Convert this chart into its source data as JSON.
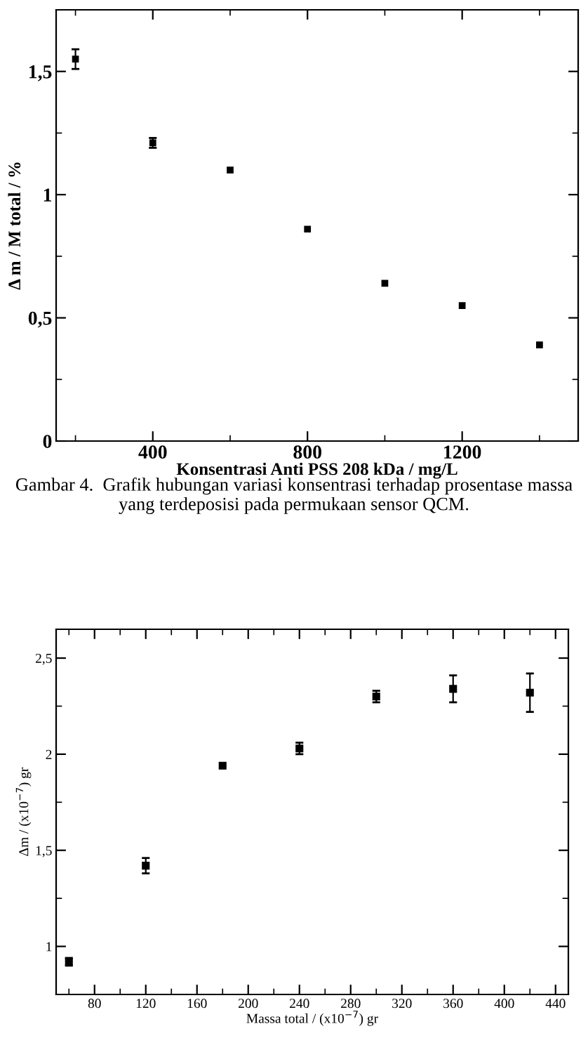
{
  "chart_data": [
    {
      "type": "scatter",
      "xlabel": "Konsentrasi Anti PSS 208 kDa / mg/L",
      "ylabel": "Δ m / M total / %",
      "x": [
        200,
        400,
        600,
        800,
        1000,
        1200,
        1400
      ],
      "values": [
        1.55,
        1.21,
        1.1,
        0.86,
        0.64,
        0.55,
        0.39
      ],
      "errors": [
        0.04,
        0.02,
        null,
        null,
        null,
        null,
        null
      ],
      "color": "#000000",
      "marker": "square",
      "xlim": [
        150,
        1500
      ],
      "xticks": [
        400,
        800,
        1200
      ],
      "ylim": [
        0,
        1.75
      ],
      "yticks": [
        0,
        {
          "value": 0.5,
          "label": "0,5"
        },
        1,
        {
          "value": 1.5,
          "label": "1,5"
        }
      ],
      "annotations": [
        "Gambar 4.  Grafik hubungan variasi konsentrasi terhadap prosentase massa yang terdeposisi pada permukaan sensor QCM."
      ]
    },
    {
      "type": "scatter",
      "xlabel": "Massa total / (x10$^{−7}$) gr",
      "ylabel": "Δm / (x10$^{−7}$) gr",
      "x": [
        60,
        120,
        180,
        240,
        300,
        360,
        420
      ],
      "values": [
        0.92,
        1.42,
        1.94,
        2.03,
        2.3,
        2.34,
        2.32
      ],
      "errors": [
        0.02,
        0.04,
        null,
        0.03,
        0.03,
        0.07,
        0.1
      ],
      "color": "#000000",
      "marker": "square",
      "xlim": [
        50,
        450
      ],
      "xticks": [
        80,
        120,
        160,
        200,
        240,
        280,
        320,
        360,
        400,
        440
      ],
      "ylim": [
        0.75,
        2.65
      ],
      "yticks": [
        1,
        {
          "value": 1.5,
          "label": "1,5"
        },
        2,
        {
          "value": 2.5,
          "label": "2,5"
        }
      ]
    }
  ]
}
